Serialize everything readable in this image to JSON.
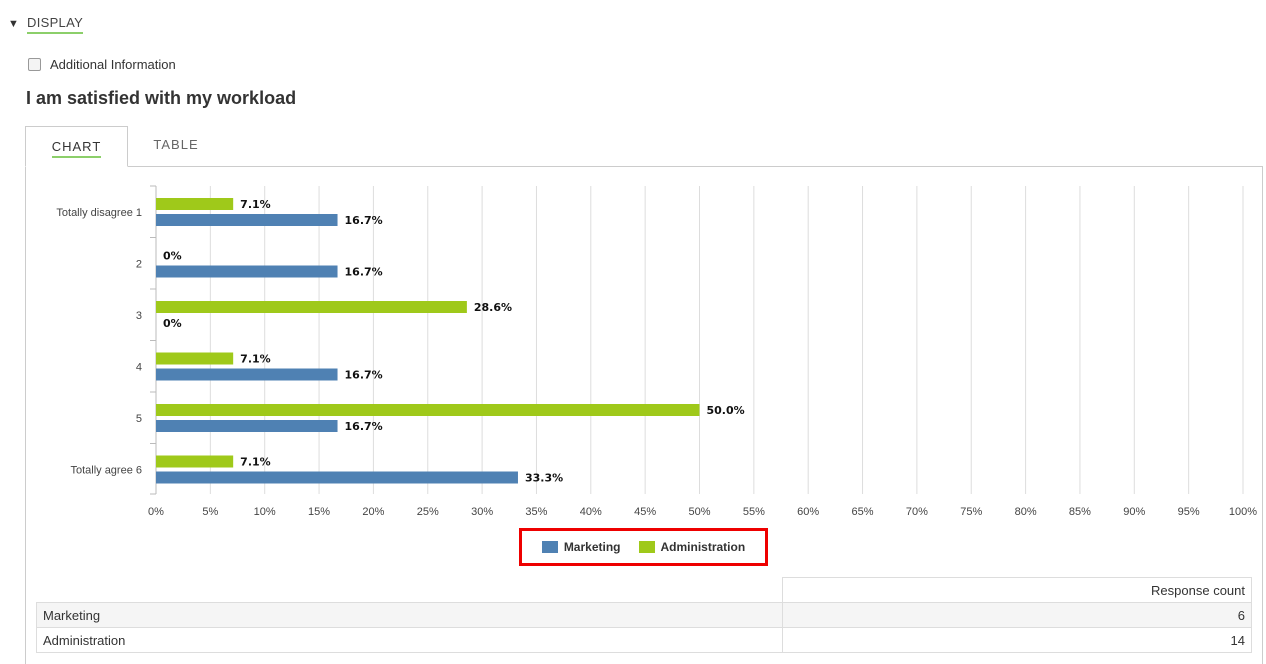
{
  "display_toggle": {
    "label": "DISPLAY"
  },
  "additional_info": {
    "label": "Additional Information",
    "checked": false
  },
  "question_title": "I am satisfied with my workload",
  "tabs": [
    {
      "label": "CHART",
      "active": true
    },
    {
      "label": "TABLE",
      "active": false
    }
  ],
  "colors": {
    "marketing": "#4f81b3",
    "administration": "#9fc91a",
    "accent": "#8ccf6a",
    "highlight": "#e00000"
  },
  "chart_data": {
    "type": "bar",
    "orientation": "horizontal",
    "categories": [
      "Totally disagree 1",
      "2",
      "3",
      "4",
      "5",
      "Totally agree 6"
    ],
    "series": [
      {
        "name": "Administration",
        "values": [
          7.1,
          0,
          28.6,
          7.1,
          50.0,
          7.1
        ],
        "labels": [
          "7.1%",
          "0%",
          "28.6%",
          "7.1%",
          "50.0%",
          "7.1%"
        ]
      },
      {
        "name": "Marketing",
        "values": [
          16.7,
          16.7,
          0,
          16.7,
          16.7,
          33.3
        ],
        "labels": [
          "16.7%",
          "16.7%",
          "0%",
          "16.7%",
          "16.7%",
          "33.3%"
        ]
      }
    ],
    "xlim": [
      0,
      100
    ],
    "xticks": [
      "0%",
      "5%",
      "10%",
      "15%",
      "20%",
      "25%",
      "30%",
      "35%",
      "40%",
      "45%",
      "50%",
      "55%",
      "60%",
      "65%",
      "70%",
      "75%",
      "80%",
      "85%",
      "90%",
      "95%",
      "100%"
    ],
    "grid": true,
    "legend_position": "bottom-center"
  },
  "legend": [
    {
      "name": "Marketing"
    },
    {
      "name": "Administration"
    }
  ],
  "response_table": {
    "header": "Response count",
    "rows": [
      {
        "name": "Marketing",
        "count": "6"
      },
      {
        "name": "Administration",
        "count": "14"
      }
    ]
  }
}
